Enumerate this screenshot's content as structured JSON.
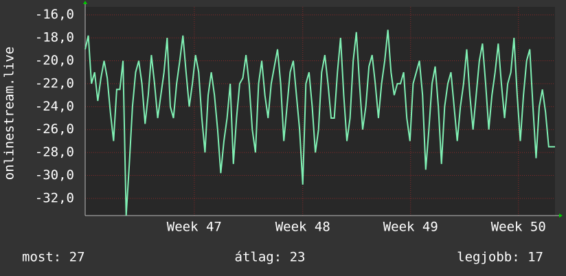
{
  "chart_data": {
    "type": "line",
    "y_label": "onlinestream.live",
    "color": "#80f0b4",
    "values": [
      -19,
      -17.8,
      -22,
      -21,
      -23.5,
      -21.5,
      -20,
      -21.5,
      -24.5,
      -27,
      -22.5,
      -22.5,
      -20,
      -33.5,
      -29,
      -24,
      -21,
      -20,
      -22,
      -25.5,
      -23,
      -19.5,
      -22,
      -25,
      -23,
      -21,
      -18,
      -24,
      -25,
      -22,
      -20,
      -17.8,
      -21,
      -24,
      -22,
      -19.5,
      -21,
      -25,
      -28,
      -23,
      -21,
      -23,
      -26,
      -29.8,
      -27,
      -25,
      -22,
      -29,
      -25,
      -22,
      -21.5,
      -19.5,
      -22,
      -26,
      -28,
      -22,
      -20,
      -23,
      -25,
      -22,
      -20.5,
      -19,
      -22,
      -27,
      -24,
      -21,
      -20,
      -23,
      -26,
      -30.8,
      -22,
      -21,
      -24,
      -28,
      -26,
      -21,
      -19.5,
      -22,
      -25,
      -25,
      -21,
      -18,
      -23,
      -27,
      -25,
      -20,
      -17.5,
      -22,
      -26,
      -24,
      -20.5,
      -19.5,
      -22,
      -25,
      -22,
      -20,
      -17.3,
      -21,
      -23,
      -22,
      -22,
      -21,
      -25,
      -27,
      -22,
      -21,
      -20,
      -23,
      -29.5,
      -26,
      -22,
      -20.5,
      -24,
      -29,
      -24,
      -22,
      -21,
      -24,
      -27,
      -24,
      -22,
      -19,
      -23,
      -26,
      -23,
      -20,
      -18.5,
      -22,
      -26,
      -23,
      -21,
      -18.5,
      -22,
      -25,
      -22,
      -21,
      -18,
      -23,
      -27,
      -23,
      -20,
      -19,
      -24,
      -28.5,
      -24,
      -22.5,
      -24.5,
      -27.5,
      -27.5,
      -27.5
    ],
    "xlim": [
      0,
      149
    ],
    "xticks": [
      {
        "value": 34.6,
        "label": "Week 47"
      },
      {
        "value": 69,
        "label": "Week 48"
      },
      {
        "value": 103.2,
        "label": "Week 49"
      },
      {
        "value": 137.4,
        "label": "Week 50"
      }
    ],
    "ylim": [
      -33.5,
      -15.3
    ],
    "yticks": [
      {
        "value": -16,
        "label": "-16,0"
      },
      {
        "value": -18,
        "label": "-18,0"
      },
      {
        "value": -20,
        "label": "-20,0"
      },
      {
        "value": -22,
        "label": "-22,0"
      },
      {
        "value": -24,
        "label": "-24,0"
      },
      {
        "value": -26,
        "label": "-26,0"
      },
      {
        "value": -28,
        "label": "-28,0"
      },
      {
        "value": -30,
        "label": "-30,0"
      },
      {
        "value": -32,
        "label": "-32,0"
      }
    ],
    "grid": true,
    "footer": [
      "most: 27",
      "átlag: 23",
      "legjobb: 17"
    ]
  }
}
